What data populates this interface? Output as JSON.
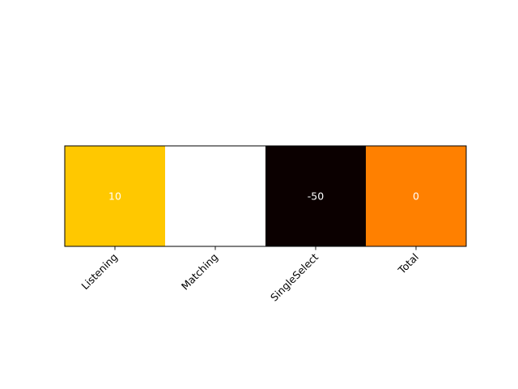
{
  "chart_data": {
    "type": "heatmap",
    "categories": [
      "Listening",
      "Matching",
      "SingleSelect",
      "Total"
    ],
    "rows": [
      ""
    ],
    "values": [
      [
        10,
        null,
        -50,
        0
      ]
    ],
    "cell_labels": [
      [
        "10",
        "",
        "-50",
        "0"
      ]
    ],
    "cell_colors": [
      "#ffc800",
      "#ffffff",
      "#0b0000",
      "#ff8000"
    ],
    "title": "",
    "xlabel": "",
    "ylabel": "",
    "grid": false,
    "legend": "none"
  }
}
